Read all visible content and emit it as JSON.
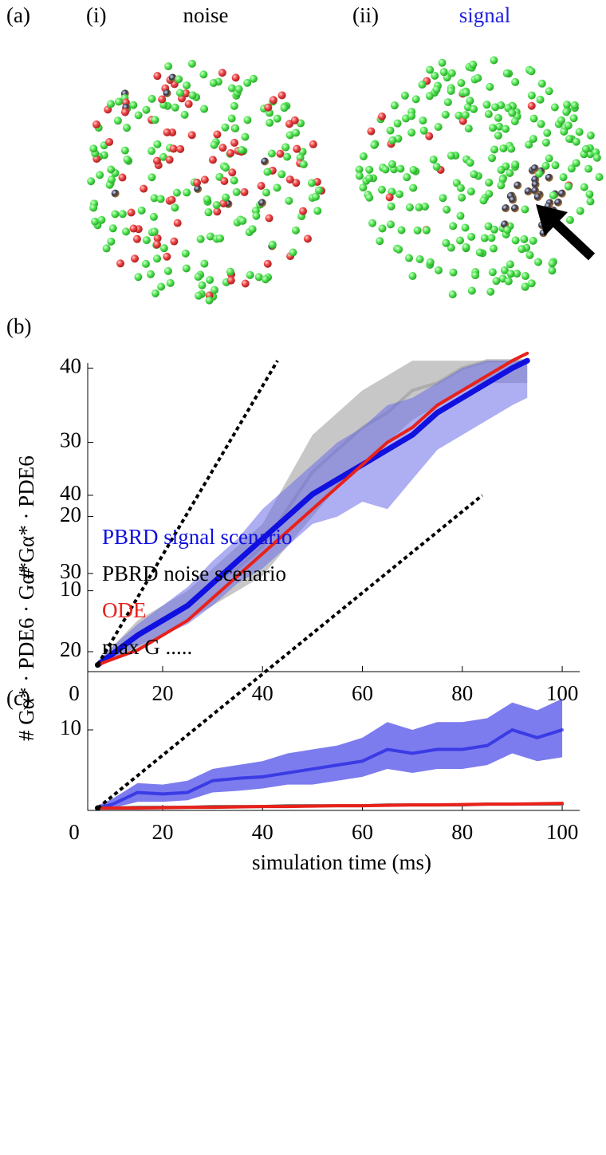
{
  "panel_a": {
    "label": "(a)",
    "left_label": "(i)",
    "left_title": "noise",
    "right_label": "(ii)",
    "right_title": "signal"
  },
  "chart_data": [
    {
      "type": "line",
      "panel_label": "(b)",
      "ylabel": "# Gα* · PDE6",
      "origin_label": "0",
      "xlim": [
        5,
        103.5
      ],
      "ylim": [
        -0.9,
        40.7
      ],
      "xticks": [
        20,
        40,
        60,
        80,
        100
      ],
      "yticks": [
        10,
        20,
        30,
        40
      ],
      "x": [
        7,
        10,
        15,
        20,
        25,
        30,
        35,
        40,
        45,
        50,
        55,
        60,
        65,
        70,
        75,
        80,
        85,
        90,
        93
      ],
      "series": [
        {
          "color": "#999999",
          "values": [
            0,
            1.5,
            4,
            6,
            8,
            11,
            13,
            16,
            21,
            26,
            29,
            32,
            34,
            37,
            38,
            40,
            41,
            41,
            41
          ],
          "lower": [
            0,
            0.5,
            2,
            4,
            6,
            8,
            10,
            12,
            16,
            20,
            24,
            27,
            30,
            33,
            35,
            37,
            38,
            38,
            38
          ],
          "upper": [
            0.5,
            2.5,
            6,
            8,
            10,
            13,
            16,
            19,
            25,
            31,
            34,
            37,
            39,
            41,
            41,
            41,
            41,
            41,
            41
          ]
        },
        {
          "color": "#6b6be8",
          "values": [
            0,
            1.5,
            4,
            6,
            8,
            11,
            14,
            17,
            20,
            23,
            25,
            27,
            29,
            31,
            34,
            36,
            38,
            40,
            41
          ],
          "lower": [
            0,
            0.8,
            2.5,
            4,
            5.5,
            8,
            11,
            13,
            16,
            19,
            20,
            22,
            21,
            25,
            29,
            31,
            33,
            35,
            36
          ],
          "upper": [
            0.5,
            2.5,
            5.5,
            8,
            10.5,
            14,
            17,
            21,
            24,
            27,
            30,
            32,
            35,
            36,
            38,
            40,
            41,
            41,
            41
          ]
        },
        {
          "color": "#1010e0",
          "values": [
            0,
            1.5,
            4,
            6,
            8,
            11,
            14,
            17,
            20,
            23,
            25,
            27,
            29,
            31,
            34,
            36,
            38,
            40,
            41
          ]
        },
        {
          "color": "#e8211a",
          "values": [
            0,
            0.8,
            2,
            4,
            6,
            9,
            12,
            15,
            18,
            21,
            24,
            27,
            30,
            32,
            35,
            37,
            39,
            41,
            42
          ]
        },
        {
          "color": "#000000",
          "dashed": true,
          "values": null
        }
      ],
      "max_line": {
        "x": [
          7,
          43
        ],
        "values": [
          0,
          41
        ],
        "color": "#000000"
      }
    },
    {
      "type": "line",
      "panel_label": "(c)",
      "ylabel": "# Gα* · PDE6 · Gα*",
      "xlabel": "simulation time (ms)",
      "origin_label": "0",
      "xlim": [
        5,
        103.5
      ],
      "ylim": [
        -0.3,
        40.3
      ],
      "xticks": [
        20,
        40,
        60,
        80,
        100
      ],
      "yticks": [
        10,
        20,
        30,
        40
      ],
      "x": [
        7,
        10,
        15,
        20,
        25,
        30,
        35,
        40,
        45,
        50,
        55,
        60,
        65,
        70,
        75,
        80,
        85,
        90,
        95,
        100
      ],
      "series": [
        {
          "name": "PBRD signal scenario",
          "color": "#1010e0",
          "values": [
            0,
            0.5,
            2,
            1.8,
            2,
            3.5,
            3.8,
            4,
            4.5,
            5,
            5.5,
            6,
            7.5,
            7,
            7.5,
            7.5,
            8,
            10,
            9,
            10
          ],
          "lower": [
            0,
            0,
            0.8,
            0.8,
            1,
            2,
            2.2,
            2.5,
            3,
            3,
            3.5,
            4,
            5,
            4.5,
            5,
            5,
            5.5,
            7,
            6,
            6.5
          ],
          "upper": [
            0.3,
            1.2,
            3.2,
            3,
            3.5,
            5,
            5.5,
            6,
            7,
            7.5,
            8,
            9,
            11,
            10,
            11,
            11,
            11.5,
            13.5,
            12.5,
            14
          ]
        },
        {
          "name": "PBRD noise scenario",
          "color": "#777777",
          "values": [
            0,
            0,
            0.1,
            0.1,
            0.1,
            0.2,
            0.2,
            0.2,
            0.3,
            0.3,
            0.3,
            0.3,
            0.4,
            0.4,
            0.4,
            0.4,
            0.5,
            0.5,
            0.5,
            0.5
          ]
        },
        {
          "name": "ODE",
          "color": "#e8211a",
          "values": [
            0,
            0,
            0,
            0.05,
            0.1,
            0.1,
            0.15,
            0.2,
            0.2,
            0.25,
            0.3,
            0.3,
            0.35,
            0.4,
            0.4,
            0.45,
            0.5,
            0.5,
            0.55,
            0.6
          ]
        },
        {
          "name": "max G .....",
          "color": "#000000",
          "values": null
        }
      ],
      "max_line": {
        "x": [
          7,
          84
        ],
        "values": [
          0,
          40
        ],
        "color": "#000000"
      }
    }
  ]
}
